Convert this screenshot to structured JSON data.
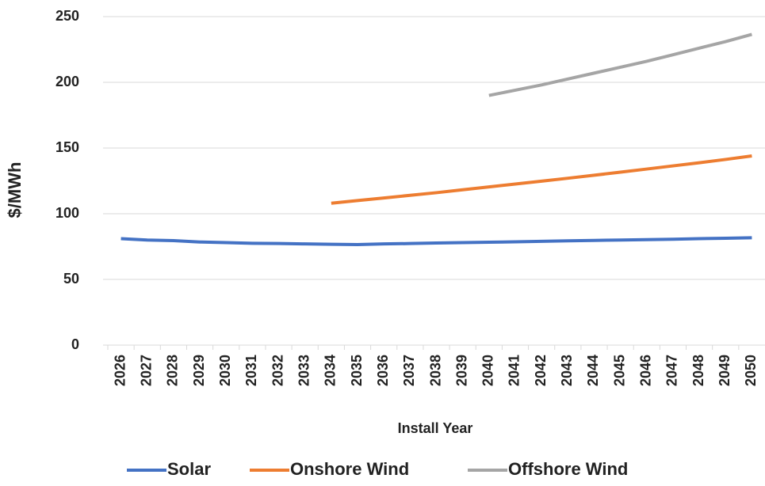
{
  "chart_data": {
    "type": "line",
    "x_label": "Install Year",
    "y_label": "$/MWh",
    "categories": [
      "2026",
      "2027",
      "2028",
      "2029",
      "2030",
      "2031",
      "2032",
      "2033",
      "2034",
      "2035",
      "2036",
      "2037",
      "2038",
      "2039",
      "2040",
      "2041",
      "2042",
      "2043",
      "2044",
      "2045",
      "2046",
      "2047",
      "2048",
      "2049",
      "2050"
    ],
    "series": [
      {
        "name": "Solar",
        "color": "#4472c4",
        "values": [
          81,
          80,
          79.5,
          78.5,
          78,
          77.5,
          77.3,
          77,
          76.7,
          76.5,
          77,
          77.3,
          77.7,
          78,
          78.3,
          78.6,
          79,
          79.4,
          79.7,
          80,
          80.3,
          80.6,
          81,
          81.3,
          81.7
        ]
      },
      {
        "name": "Onshore Wind",
        "color": "#ed7d31",
        "values": [
          null,
          null,
          null,
          null,
          null,
          null,
          null,
          null,
          108,
          110,
          112,
          114,
          116,
          118.2,
          120.4,
          122.6,
          124.8,
          127,
          129.3,
          131.6,
          134,
          136.4,
          138.8,
          141.3,
          144
        ]
      },
      {
        "name": "Offshore Wind",
        "color": "#a5a5a5",
        "values": [
          null,
          null,
          null,
          null,
          null,
          null,
          null,
          null,
          null,
          null,
          null,
          null,
          null,
          null,
          190,
          194,
          198,
          202.5,
          207,
          211.5,
          216,
          221,
          226,
          231,
          236.5
        ]
      }
    ],
    "ylim": [
      0,
      250
    ],
    "yticks": [
      0,
      50,
      100,
      150,
      200,
      250
    ],
    "grid": true,
    "legend": "bottom"
  }
}
